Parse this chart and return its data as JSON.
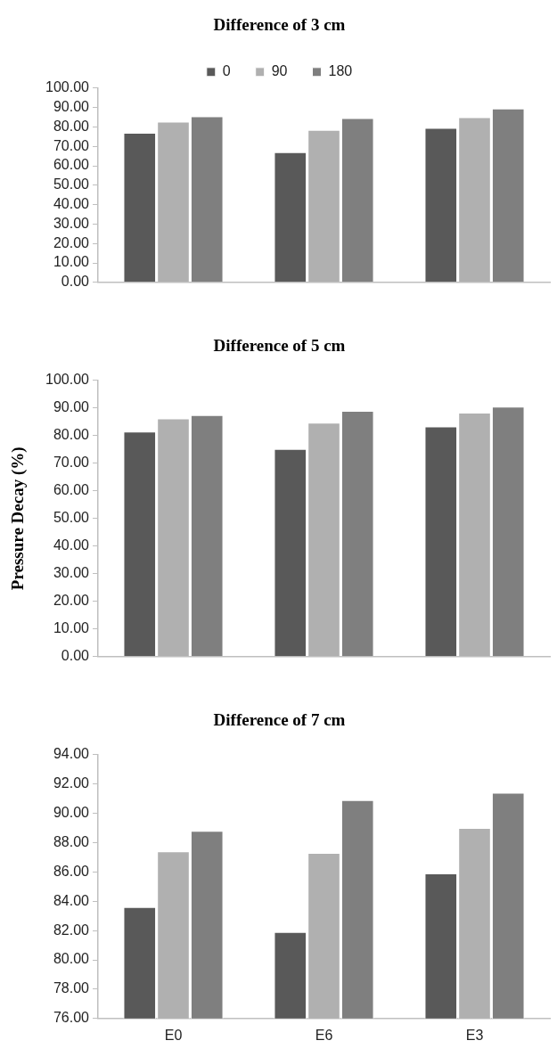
{
  "chart_data": [
    {
      "type": "bar",
      "title": "Difference of 3 cm",
      "categories": [
        null,
        null,
        null
      ],
      "legend": "top",
      "grid": false,
      "ylim": [
        0,
        100
      ],
      "yticks": [
        {
          "value": 0,
          "label": "0.00"
        },
        {
          "value": 10,
          "label": "10.00"
        },
        {
          "value": 20,
          "label": "20.00"
        },
        {
          "value": 30,
          "label": "30.00"
        },
        {
          "value": 40,
          "label": "40.00"
        },
        {
          "value": 50,
          "label": "50.00"
        },
        {
          "value": 60,
          "label": "60.00"
        },
        {
          "value": 70,
          "label": "70.00"
        },
        {
          "value": 80,
          "label": "80.00"
        },
        {
          "value": 90,
          "label": "90.00"
        },
        {
          "value": 100,
          "label": "100.00"
        }
      ],
      "series": [
        {
          "name": "0",
          "color": "#595959",
          "values": [
            77.0,
            67.0,
            79.5
          ]
        },
        {
          "name": "90",
          "color": "#b0b0b0",
          "values": [
            82.7,
            78.5,
            85.0
          ]
        },
        {
          "name": "180",
          "color": "#7f7f7f",
          "values": [
            85.5,
            84.5,
            89.5
          ]
        }
      ]
    },
    {
      "type": "bar",
      "title": "Difference of 5 cm",
      "ylabel": "Pressure Decay (%)",
      "categories": [
        null,
        null,
        null
      ],
      "grid": false,
      "ylim": [
        0,
        100
      ],
      "yticks": [
        {
          "value": 0,
          "label": "0.00"
        },
        {
          "value": 10,
          "label": "10.00"
        },
        {
          "value": 20,
          "label": "20.00"
        },
        {
          "value": 30,
          "label": "30.00"
        },
        {
          "value": 40,
          "label": "40.00"
        },
        {
          "value": 50,
          "label": "50.00"
        },
        {
          "value": 60,
          "label": "60.00"
        },
        {
          "value": 70,
          "label": "70.00"
        },
        {
          "value": 80,
          "label": "80.00"
        },
        {
          "value": 90,
          "label": "90.00"
        },
        {
          "value": 100,
          "label": "100.00"
        }
      ],
      "series": [
        {
          "color": "#595959",
          "values": [
            81.5,
            75.2,
            83.3
          ]
        },
        {
          "color": "#b0b0b0",
          "values": [
            86.2,
            84.7,
            88.3
          ]
        },
        {
          "color": "#7f7f7f",
          "values": [
            87.4,
            89.0,
            90.5
          ]
        }
      ]
    },
    {
      "type": "bar",
      "title": "Difference of 7 cm",
      "categories": [
        "E0",
        "E6",
        "E3"
      ],
      "grid": false,
      "ylim": [
        76,
        94
      ],
      "yticks": [
        {
          "value": 76,
          "label": "76.00"
        },
        {
          "value": 78,
          "label": "78.00"
        },
        {
          "value": 80,
          "label": "80.00"
        },
        {
          "value": 82,
          "label": "82.00"
        },
        {
          "value": 84,
          "label": "84.00"
        },
        {
          "value": 86,
          "label": "86.00"
        },
        {
          "value": 88,
          "label": "88.00"
        },
        {
          "value": 90,
          "label": "90.00"
        },
        {
          "value": 92,
          "label": "92.00"
        },
        {
          "value": 94,
          "label": "94.00"
        }
      ],
      "series": [
        {
          "color": "#595959",
          "values": [
            83.6,
            81.9,
            85.9
          ]
        },
        {
          "color": "#b0b0b0",
          "values": [
            87.4,
            87.3,
            89.0
          ]
        },
        {
          "color": "#7f7f7f",
          "values": [
            88.8,
            90.9,
            91.4
          ]
        }
      ]
    }
  ]
}
